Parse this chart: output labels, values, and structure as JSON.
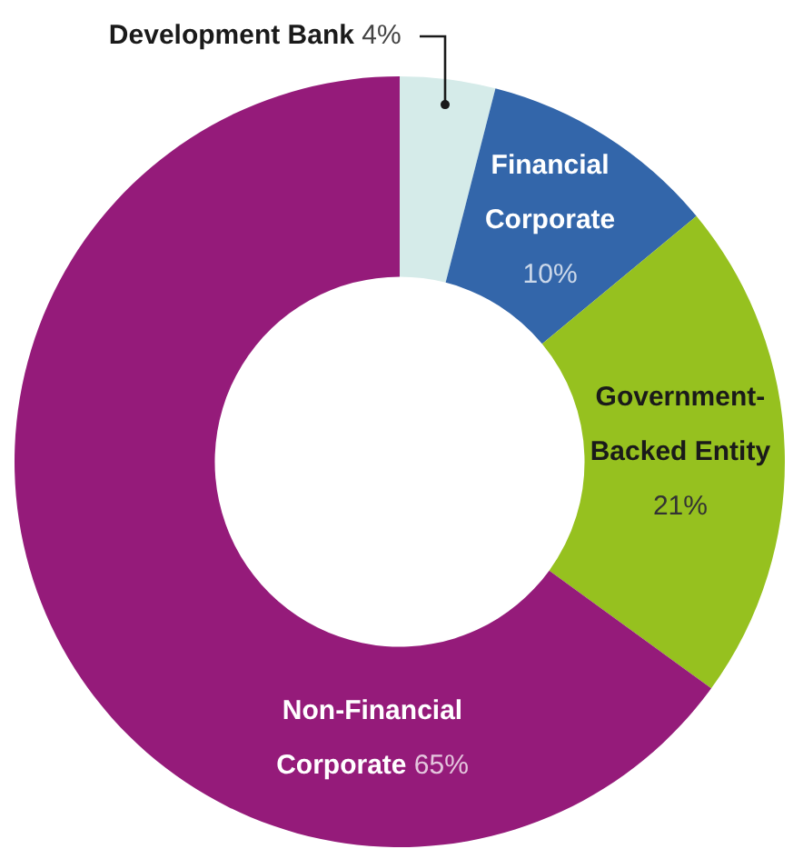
{
  "chart_data": {
    "type": "donut",
    "categories": [
      "Development Bank",
      "Financial Corporate",
      "Government-Backed Entity",
      "Non-Financial Corporate"
    ],
    "values": [
      4,
      10,
      21,
      65
    ],
    "colors": [
      "#d5ebe9",
      "#3366aa",
      "#96c11f",
      "#951b7a"
    ],
    "value_labels": [
      "4%",
      "10%",
      "21%",
      "65%"
    ],
    "legend": false
  }
}
